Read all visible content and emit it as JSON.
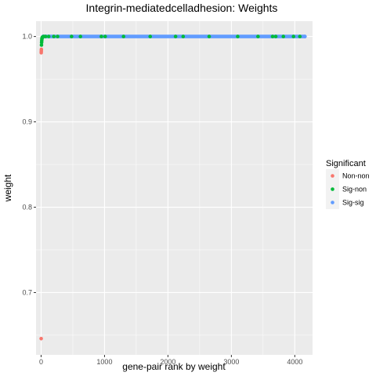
{
  "chart_data": {
    "type": "scatter",
    "title": "Integrin-mediatedcelladhesion: Weights",
    "xlabel": "gene-pair rank by weight",
    "ylabel": "weight",
    "xlim": [
      -80,
      4280
    ],
    "ylim": [
      0.627,
      1.018
    ],
    "xticks": [
      0,
      1000,
      2000,
      3000,
      4000
    ],
    "xtick_labels": [
      "0",
      "1000",
      "2000",
      "3000",
      "4000"
    ],
    "yticks": [
      0.7,
      0.8,
      0.9,
      1.0
    ],
    "ytick_labels": [
      "0.7",
      "0.8",
      "0.9",
      "1.0"
    ],
    "grid": true,
    "legend": {
      "title": "Significant",
      "position": "right",
      "entries": [
        "Non-non",
        "Sig-non",
        "Sig-sig"
      ]
    },
    "colors": {
      "Non-non": "#F8766D",
      "Sig-non": "#00BA38",
      "Sig-sig": "#619CFF",
      "panel": "#EBEBEB",
      "grid": "#FFFFFF"
    },
    "series": [
      {
        "name": "Non-non",
        "points": [
          [
            1,
            0.646
          ],
          [
            2,
            0.981
          ],
          [
            3,
            0.983
          ],
          [
            4,
            0.985
          ]
        ]
      },
      {
        "name": "Sig-non",
        "points": [
          [
            6,
            0.99
          ],
          [
            8,
            0.993
          ],
          [
            10,
            0.995
          ],
          [
            12,
            0.997
          ],
          [
            15,
            0.998
          ],
          [
            18,
            0.999
          ],
          [
            25,
            0.9995
          ],
          [
            40,
            1.0
          ],
          [
            70,
            1.0
          ],
          [
            120,
            1.0
          ],
          [
            200,
            1.0
          ],
          [
            260,
            1.0
          ],
          [
            480,
            1.0
          ],
          [
            620,
            1.0
          ],
          [
            950,
            1.0
          ],
          [
            1010,
            1.0
          ],
          [
            1300,
            1.0
          ],
          [
            1720,
            1.0
          ],
          [
            2120,
            1.0
          ],
          [
            2240,
            1.0
          ],
          [
            2650,
            1.0
          ],
          [
            3100,
            1.0
          ],
          [
            3420,
            1.0
          ],
          [
            3650,
            1.0
          ],
          [
            3700,
            1.0
          ],
          [
            3820,
            1.0
          ],
          [
            3980,
            1.0
          ],
          [
            4080,
            1.0
          ]
        ]
      },
      {
        "name": "Sig-sig",
        "points": [
          [
            30,
            1.0
          ],
          [
            4160,
            1.0
          ]
        ],
        "dense_range": [
          30,
          4160
        ],
        "dense_value": 1.0
      }
    ]
  }
}
